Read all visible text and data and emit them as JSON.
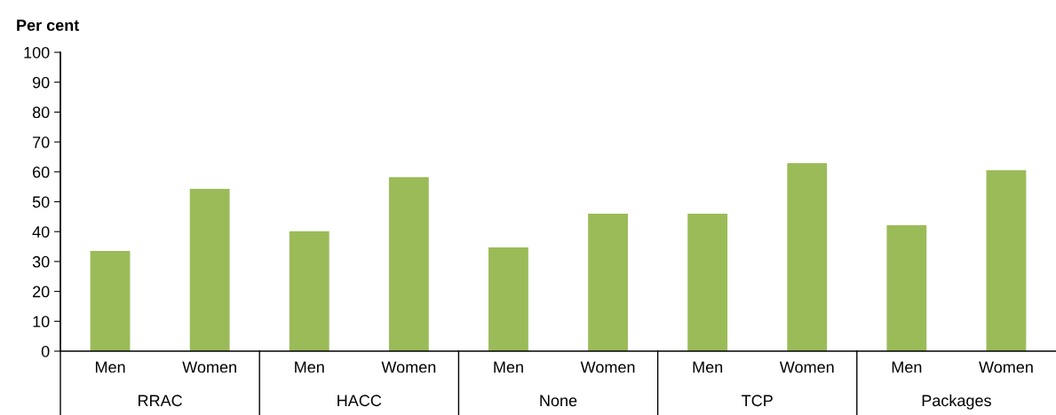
{
  "chart_data": {
    "type": "bar",
    "ylabel": "Per cent",
    "categories": [
      "Men",
      "Women",
      "Men",
      "Women",
      "Men",
      "Women",
      "Men",
      "Women",
      "Men",
      "Women"
    ],
    "values": [
      33.5,
      54.3,
      40.1,
      58.2,
      34.7,
      46.0,
      46.0,
      62.9,
      42.1,
      60.5
    ],
    "color": "#9bbb59",
    "annotations": [
      "RRAC",
      "HACC",
      "None",
      "TCP",
      "Packages"
    ],
    "ylim": [
      0,
      100
    ],
    "yticks": [
      0,
      10,
      20,
      30,
      40,
      50,
      60,
      70,
      80,
      90,
      100
    ],
    "grid": false,
    "legend": false
  }
}
